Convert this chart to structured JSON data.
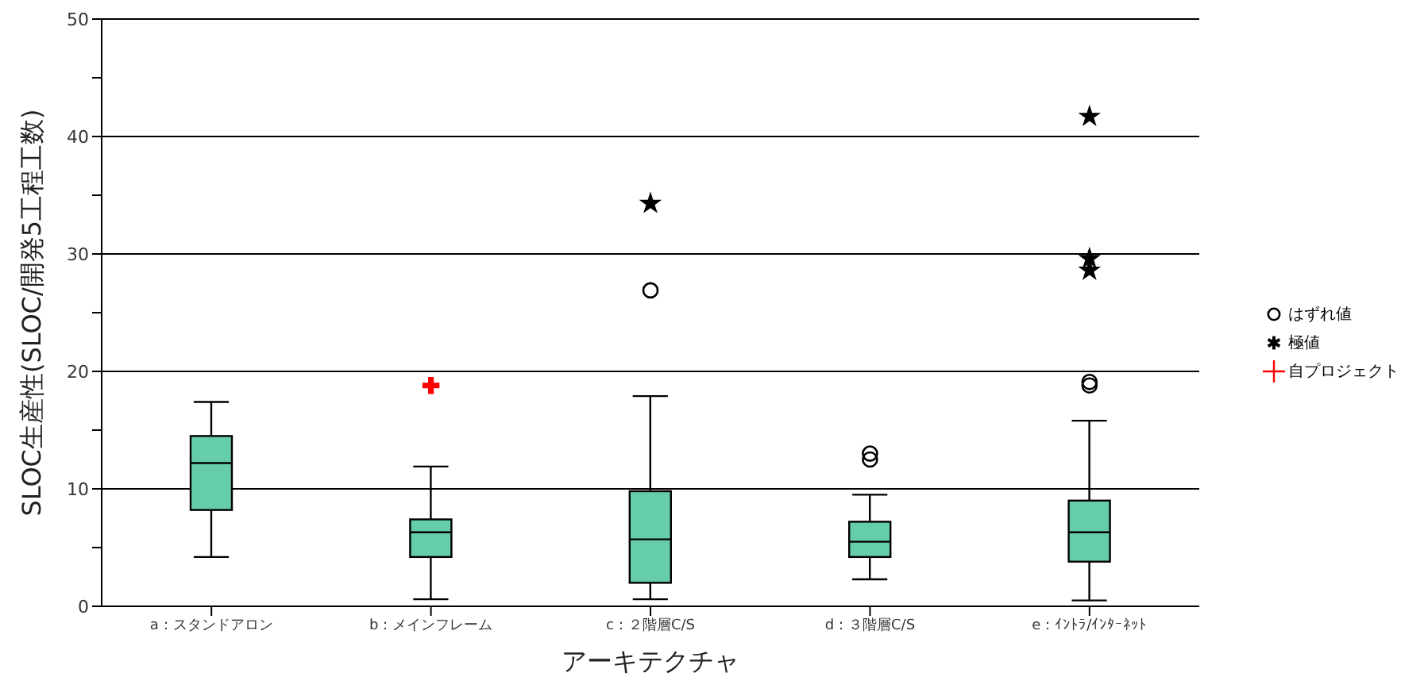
{
  "chart_data": {
    "type": "box",
    "xlabel": "アーキテクチャ",
    "ylabel": "SLOC生産性(SLOC/開発5工程工数)",
    "categories": [
      "a：スタンドアロン",
      "b：メインフレーム",
      "c：２階層C/S",
      "d：３階層C/S",
      "e：ｲﾝﾄﾗ/ｲﾝﾀｰﾈｯﾄ"
    ],
    "ylim": [
      0,
      50
    ],
    "yticks": [
      0,
      {
        "value": 5,
        "label": null
      },
      10,
      {
        "value": 15,
        "label": null
      },
      20,
      {
        "value": 25,
        "label": null
      },
      30,
      {
        "value": 35,
        "label": null
      },
      40,
      {
        "value": 45,
        "label": null
      },
      50
    ],
    "grid": "y",
    "legend": "right",
    "series": [
      {
        "name": "はずれ値",
        "color": "#66cdaa",
        "marker": "circle",
        "boxes": [
          {
            "low": 4.2,
            "q1": 8.2,
            "median": 12.2,
            "q3": 14.5,
            "high": 17.4
          },
          {
            "low": 0.6,
            "q1": 4.2,
            "median": 6.3,
            "q3": 7.4,
            "high": 11.9
          },
          {
            "low": 0.6,
            "q1": 2.0,
            "median": 5.7,
            "q3": 9.8,
            "high": 17.9,
            "outliers": [
              26.9
            ]
          },
          {
            "low": 2.3,
            "q1": 4.2,
            "median": 5.5,
            "q3": 7.2,
            "high": 9.5,
            "outliers": [
              12.5,
              13.0
            ]
          },
          {
            "low": 0.5,
            "q1": 3.8,
            "median": 6.3,
            "q3": 9.0,
            "high": 15.8,
            "outliers": [
              18.8,
              19.1
            ]
          }
        ]
      },
      {
        "name": "極値",
        "type": "scatter",
        "color": "#000000",
        "marker": "star",
        "x": [
          "c：２階層C/S",
          "e：ｲﾝﾄﾗ/ｲﾝﾀｰﾈｯﾄ",
          "e：ｲﾝﾄﾗ/ｲﾝﾀｰﾈｯﾄ",
          "e：ｲﾝﾄﾗ/ｲﾝﾀｰﾈｯﾄ"
        ],
        "values": [
          34.3,
          41.7,
          29.6,
          28.6
        ]
      },
      {
        "name": "自プロジェクト",
        "type": "scatter",
        "color": "#ff0000",
        "marker": "cross",
        "x": [
          "b：メインフレーム"
        ],
        "values": [
          18.8
        ]
      }
    ]
  }
}
